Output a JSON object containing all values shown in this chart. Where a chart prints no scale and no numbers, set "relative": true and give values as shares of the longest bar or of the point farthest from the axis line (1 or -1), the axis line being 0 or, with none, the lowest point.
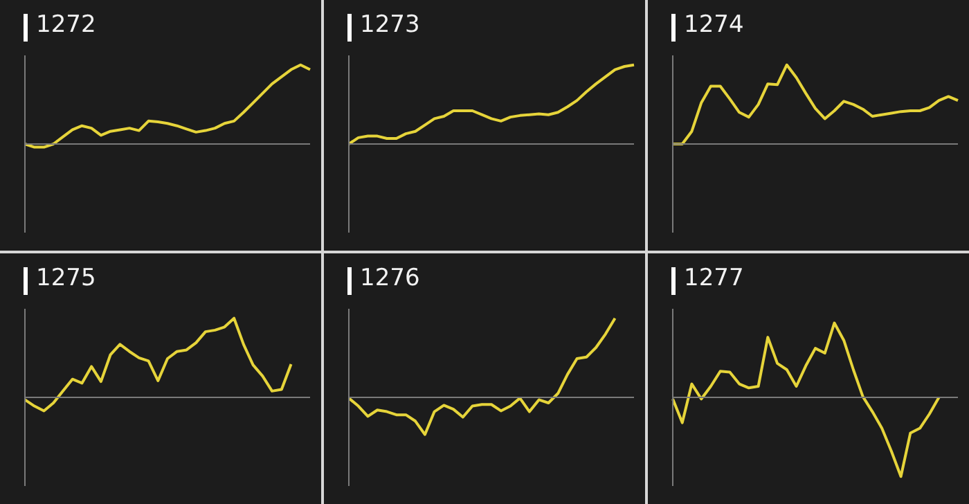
{
  "chart_data": [
    {
      "type": "line",
      "title": "1272",
      "relative": true,
      "categories": [
        null,
        null,
        null,
        null,
        null,
        null,
        null,
        null,
        null,
        null,
        null,
        null,
        null,
        null,
        null,
        null,
        null,
        null,
        null,
        null,
        null,
        null,
        null,
        null,
        null,
        null,
        null,
        null,
        null,
        null,
        null
      ],
      "series": [
        {
          "color": "#e6d43a",
          "values": [
            0,
            -0.04,
            -0.04,
            0,
            0.09,
            0.18,
            0.23,
            0.2,
            0.11,
            0.16,
            0.18,
            0.2,
            0.17,
            0.29,
            0.28,
            0.26,
            0.23,
            0.19,
            0.15,
            0.17,
            0.2,
            0.26,
            0.29,
            0.4,
            0.52,
            0.64,
            0.76,
            0.85,
            0.94,
            1,
            0.94
          ]
        }
      ]
    },
    {
      "type": "line",
      "title": "1273",
      "relative": true,
      "categories": [
        null,
        null,
        null,
        null,
        null,
        null,
        null,
        null,
        null,
        null,
        null,
        null,
        null,
        null,
        null,
        null,
        null,
        null,
        null,
        null,
        null,
        null,
        null,
        null,
        null,
        null,
        null,
        null,
        null,
        null,
        null
      ],
      "series": [
        {
          "color": "#e6d43a",
          "values": [
            0,
            0.08,
            0.1,
            0.1,
            0.07,
            0.07,
            0.13,
            0.16,
            0.24,
            0.32,
            0.35,
            0.42,
            0.42,
            0.42,
            0.37,
            0.32,
            0.29,
            0.34,
            0.36,
            0.37,
            0.38,
            0.37,
            0.4,
            0.47,
            0.55,
            0.66,
            0.76,
            0.85,
            0.94,
            0.98,
            1
          ]
        }
      ]
    },
    {
      "type": "line",
      "title": "1274",
      "relative": true,
      "categories": [
        null,
        null,
        null,
        null,
        null,
        null,
        null,
        null,
        null,
        null,
        null,
        null,
        null,
        null,
        null,
        null,
        null,
        null,
        null,
        null,
        null,
        null,
        null,
        null,
        null,
        null,
        null,
        null,
        null,
        null,
        null
      ],
      "series": [
        {
          "color": "#e6d43a",
          "values": [
            0,
            0,
            0.16,
            0.52,
            0.73,
            0.73,
            0.57,
            0.4,
            0.34,
            0.5,
            0.76,
            0.75,
            1,
            0.84,
            0.64,
            0.45,
            0.32,
            0.42,
            0.54,
            0.5,
            0.44,
            0.35,
            0.37,
            0.39,
            0.41,
            0.42,
            0.42,
            0.46,
            0.55,
            0.6,
            0.55
          ]
        }
      ]
    },
    {
      "type": "line",
      "title": "1275",
      "relative": true,
      "categories": [
        null,
        null,
        null,
        null,
        null,
        null,
        null,
        null,
        null,
        null,
        null,
        null,
        null,
        null,
        null,
        null,
        null,
        null,
        null,
        null,
        null,
        null,
        null,
        null,
        null,
        null,
        null,
        null,
        null,
        null,
        null
      ],
      "series": [
        {
          "color": "#e6d43a",
          "values": [
            -0.03,
            -0.11,
            -0.17,
            -0.07,
            0.08,
            0.23,
            0.18,
            0.39,
            0.2,
            0.54,
            0.67,
            0.58,
            0.5,
            0.46,
            0.21,
            0.49,
            0.58,
            0.6,
            0.69,
            0.83,
            0.85,
            0.89,
            1,
            0.67,
            0.41,
            0.27,
            0.08,
            0.1,
            0.42,
            null,
            null
          ]
        }
      ]
    },
    {
      "type": "line",
      "title": "1276",
      "relative": true,
      "categories": [
        null,
        null,
        null,
        null,
        null,
        null,
        null,
        null,
        null,
        null,
        null,
        null,
        null,
        null,
        null,
        null,
        null,
        null,
        null,
        null,
        null,
        null,
        null,
        null,
        null,
        null,
        null,
        null,
        null,
        null,
        null
      ],
      "series": [
        {
          "color": "#e6d43a",
          "values": [
            -0.01,
            -0.11,
            -0.24,
            -0.16,
            -0.18,
            -0.22,
            -0.22,
            -0.3,
            -0.47,
            -0.18,
            -0.1,
            -0.15,
            -0.25,
            -0.11,
            -0.09,
            -0.09,
            -0.17,
            -0.11,
            -0.01,
            -0.18,
            -0.03,
            -0.07,
            0.05,
            0.29,
            0.49,
            0.51,
            0.63,
            0.8,
            1,
            null,
            null
          ]
        }
      ]
    },
    {
      "type": "line",
      "title": "1277",
      "relative": true,
      "categories": [
        null,
        null,
        null,
        null,
        null,
        null,
        null,
        null,
        null,
        null,
        null,
        null,
        null,
        null,
        null,
        null,
        null,
        null,
        null,
        null,
        null,
        null,
        null,
        null,
        null,
        null,
        null,
        null,
        null,
        null,
        null
      ],
      "series": [
        {
          "color": "#e6d43a",
          "values": [
            -0.02,
            -0.32,
            0.17,
            -0.02,
            0.14,
            0.33,
            0.32,
            0.17,
            0.12,
            0.14,
            0.76,
            0.43,
            0.35,
            0.14,
            0.4,
            0.62,
            0.56,
            0.94,
            0.72,
            0.35,
            0.01,
            -0.18,
            -0.39,
            -0.68,
            -1,
            -0.45,
            -0.39,
            -0.21,
            0,
            null,
            null
          ]
        }
      ]
    }
  ]
}
